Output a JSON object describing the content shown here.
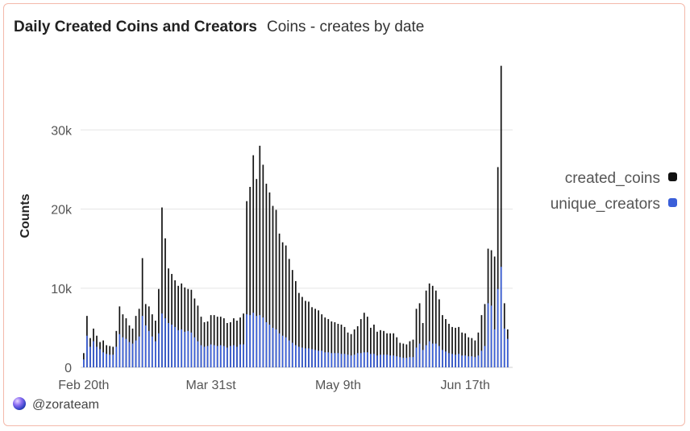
{
  "header": {
    "title": "Daily Created Coins and Creators",
    "subtitle": "Coins - creates by date"
  },
  "footer": {
    "handle": "@zorateam"
  },
  "chart_data": {
    "type": "bar",
    "ylabel": "Counts",
    "ylim": [
      0,
      40000
    ],
    "yticks": [
      0,
      10000,
      20000,
      30000
    ],
    "ytick_labels": [
      "0",
      "10k",
      "20k",
      "30k"
    ],
    "x_tick_labels": [
      "Feb 20th",
      "Mar 31st",
      "May 9th",
      "Jun 17th"
    ],
    "x_tick_indices": [
      0,
      39,
      78,
      117
    ],
    "grid": true,
    "legend_position": "right",
    "bar_mode": "overlay",
    "series": [
      {
        "name": "created_coins",
        "color": "#111111",
        "values": [
          1800,
          6500,
          3700,
          4900,
          4000,
          3200,
          3400,
          2800,
          2700,
          2600,
          4600,
          7700,
          6700,
          6200,
          5300,
          4900,
          6500,
          7400,
          13800,
          8000,
          7700,
          6700,
          5900,
          9900,
          20200,
          16300,
          12500,
          11800,
          11000,
          10300,
          10600,
          10100,
          9900,
          9800,
          8700,
          7800,
          6400,
          5700,
          5800,
          6600,
          6600,
          6400,
          6400,
          6200,
          5600,
          5700,
          6200,
          5900,
          6300,
          6800,
          21000,
          22800,
          26800,
          23800,
          28000,
          25600,
          23200,
          22100,
          20400,
          19900,
          16900,
          15800,
          15400,
          13700,
          12300,
          10900,
          9400,
          8900,
          8400,
          8300,
          7600,
          7400,
          7200,
          6700,
          6300,
          6100,
          5800,
          5700,
          5500,
          5400,
          5100,
          4400,
          4200,
          4800,
          5200,
          6100,
          6900,
          6400,
          5000,
          5400,
          4500,
          4700,
          4600,
          4300,
          4300,
          4300,
          3800,
          3100,
          3000,
          2900,
          3300,
          3500,
          7400,
          8100,
          5600,
          9700,
          10600,
          10300,
          9700,
          8600,
          6600,
          6100,
          5500,
          5100,
          5000,
          5100,
          4400,
          4300,
          3800,
          3700,
          3400,
          4400,
          6600,
          8000,
          15000,
          14800,
          14000,
          25300,
          38100,
          8100,
          4800
        ]
      },
      {
        "name": "unique_creators",
        "color": "#3a5fd9",
        "values": [
          1000,
          4000,
          2600,
          3300,
          2600,
          2300,
          1900,
          1700,
          1600,
          1600,
          2600,
          4200,
          3800,
          3600,
          3200,
          3000,
          3400,
          3900,
          6500,
          5300,
          4600,
          3900,
          3300,
          4300,
          6800,
          6200,
          5600,
          5400,
          5100,
          4700,
          4800,
          4500,
          4600,
          4400,
          3800,
          3300,
          2800,
          2600,
          2700,
          2900,
          2800,
          2700,
          2800,
          2700,
          2500,
          2700,
          2800,
          2600,
          2900,
          2900,
          6700,
          6600,
          6900,
          6500,
          6600,
          6300,
          5700,
          5400,
          5000,
          4800,
          4300,
          4000,
          3800,
          3400,
          3100,
          2800,
          2600,
          2500,
          2400,
          2400,
          2300,
          2200,
          2100,
          2100,
          1900,
          1900,
          1800,
          1800,
          1800,
          1700,
          1700,
          1600,
          1500,
          1600,
          1800,
          1800,
          1900,
          1900,
          1700,
          1700,
          1500,
          1600,
          1600,
          1600,
          1500,
          1500,
          1400,
          1300,
          1200,
          1200,
          1300,
          1300,
          2500,
          3000,
          2200,
          2800,
          3300,
          3000,
          3000,
          2700,
          2200,
          2000,
          1800,
          1700,
          1600,
          1700,
          1500,
          1500,
          1400,
          1400,
          1300,
          1500,
          2100,
          2700,
          8100,
          7800,
          4800,
          9900,
          12700,
          4900,
          3600
        ]
      }
    ]
  }
}
